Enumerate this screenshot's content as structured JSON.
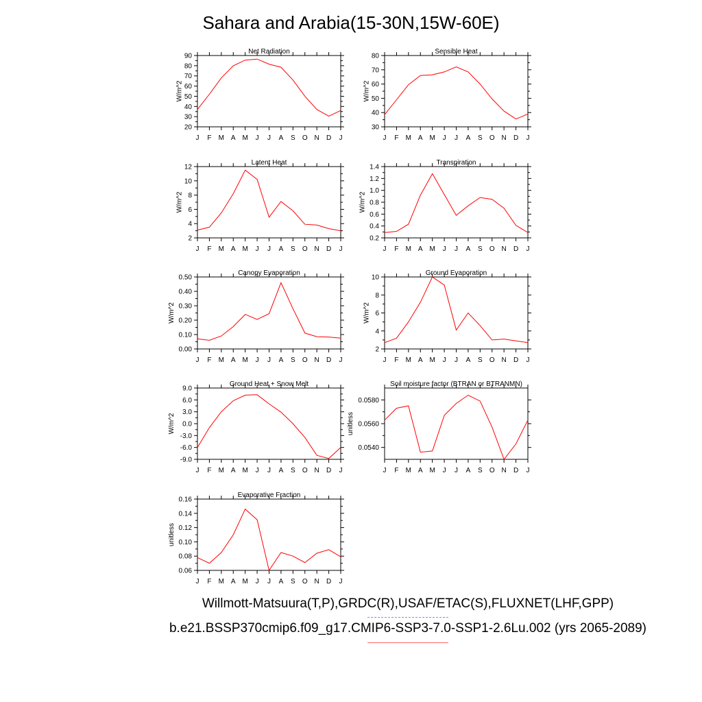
{
  "title": "Sahara and Arabia(15-30N,15W-60E)",
  "footer": {
    "line1": "Willmott-Matsuura(T,P),GRDC(R),USAF/ETAC(S),FLUXNET(LHF,GPP)",
    "line2": "b.e21.BSSP370cmip6.f09_g17.CMIP6-SSP3-7.0-SSP1-2.6Lu.002 (yrs 2065-2089)"
  },
  "colors": {
    "series": "#ff0000",
    "axis": "#000000"
  },
  "chart_data": [
    {
      "type": "line",
      "title": "Net Radiation",
      "ylabel": "W/m^2",
      "x": [
        "J",
        "F",
        "M",
        "A",
        "M",
        "J",
        "J",
        "A",
        "S",
        "O",
        "N",
        "D",
        "J"
      ],
      "ylim": [
        20,
        90
      ],
      "yticks": [
        "20",
        "30",
        "40",
        "50",
        "60",
        "70",
        "80",
        "90"
      ],
      "series": [
        {
          "values": [
            37,
            52,
            68,
            80,
            85.5,
            86.5,
            81.5,
            78.5,
            66,
            50,
            37,
            30.5,
            36
          ]
        }
      ]
    },
    {
      "type": "line",
      "title": "Sensible Heat",
      "ylabel": "W/m^2",
      "x": [
        "J",
        "F",
        "M",
        "A",
        "M",
        "J",
        "J",
        "A",
        "S",
        "O",
        "N",
        "D",
        "J"
      ],
      "ylim": [
        30,
        80
      ],
      "yticks": [
        "30",
        "40",
        "50",
        "60",
        "70",
        "80"
      ],
      "series": [
        {
          "values": [
            38.5,
            49,
            59.5,
            66,
            66.5,
            68.5,
            72,
            68.5,
            60,
            49.5,
            41,
            35.5,
            39
          ]
        }
      ]
    },
    {
      "type": "line",
      "title": "Latent Heat",
      "ylabel": "W/m^2",
      "x": [
        "J",
        "F",
        "M",
        "A",
        "M",
        "J",
        "J",
        "A",
        "S",
        "O",
        "N",
        "D",
        "J"
      ],
      "ylim": [
        2,
        12
      ],
      "yticks": [
        "2",
        "4",
        "6",
        "8",
        "10",
        "12"
      ],
      "series": [
        {
          "values": [
            3.1,
            3.5,
            5.5,
            8.2,
            11.5,
            10.2,
            4.9,
            7.1,
            5.8,
            3.9,
            3.8,
            3.3,
            3.0
          ]
        }
      ]
    },
    {
      "type": "line",
      "title": "Transpiration",
      "ylabel": "W/m^2",
      "x": [
        "J",
        "F",
        "M",
        "A",
        "M",
        "J",
        "J",
        "A",
        "S",
        "O",
        "N",
        "D",
        "J"
      ],
      "ylim": [
        0.2,
        1.4
      ],
      "yticks": [
        "0.2",
        "0.4",
        "0.6",
        "0.8",
        "1.0",
        "1.2",
        "1.4"
      ],
      "series": [
        {
          "values": [
            0.29,
            0.31,
            0.43,
            0.92,
            1.28,
            0.93,
            0.58,
            0.74,
            0.88,
            0.85,
            0.7,
            0.41,
            0.29
          ]
        }
      ]
    },
    {
      "type": "line",
      "title": "Canopy Evaporation",
      "ylabel": "W/m^2",
      "x": [
        "J",
        "F",
        "M",
        "A",
        "M",
        "J",
        "J",
        "A",
        "S",
        "O",
        "N",
        "D",
        "J"
      ],
      "ylim": [
        0.0,
        0.5
      ],
      "yticks": [
        "0.00",
        "0.10",
        "0.20",
        "0.30",
        "0.40",
        "0.50"
      ],
      "series": [
        {
          "values": [
            0.07,
            0.06,
            0.09,
            0.155,
            0.24,
            0.205,
            0.245,
            0.46,
            0.28,
            0.11,
            0.085,
            0.083,
            0.075
          ]
        }
      ]
    },
    {
      "type": "line",
      "title": "Ground Evaporation",
      "ylabel": "W/m^2",
      "x": [
        "J",
        "F",
        "M",
        "A",
        "M",
        "J",
        "J",
        "A",
        "S",
        "O",
        "N",
        "D",
        "J"
      ],
      "ylim": [
        2,
        10
      ],
      "yticks": [
        "2",
        "4",
        "6",
        "8",
        "10"
      ],
      "series": [
        {
          "values": [
            2.7,
            3.2,
            5.0,
            7.2,
            10.0,
            9.1,
            4.1,
            6.0,
            4.6,
            3.0,
            3.1,
            2.9,
            2.7
          ]
        }
      ]
    },
    {
      "type": "line",
      "title": "Ground Heat + Snow Melt",
      "ylabel": "W/m^2",
      "x": [
        "J",
        "F",
        "M",
        "A",
        "M",
        "J",
        "J",
        "A",
        "S",
        "O",
        "N",
        "D",
        "J"
      ],
      "ylim": [
        -9,
        9
      ],
      "yticks": [
        "-9.0",
        "-6.0",
        "-3.0",
        "0.0",
        "3.0",
        "6.0",
        "9.0"
      ],
      "series": [
        {
          "values": [
            -6.0,
            -1.0,
            3.0,
            5.8,
            7.2,
            7.3,
            5.0,
            2.9,
            0.0,
            -3.5,
            -8.0,
            -8.8,
            -6.0
          ]
        }
      ]
    },
    {
      "type": "line",
      "title": "Soil moisture factor (BTRAN or BTRANMN)",
      "ylabel": "unitless",
      "x": [
        "J",
        "F",
        "M",
        "A",
        "M",
        "J",
        "J",
        "A",
        "S",
        "O",
        "N",
        "D",
        "J"
      ],
      "ylim": [
        0.053,
        0.059
      ],
      "yticks": [
        "0.0540",
        "0.0560",
        "0.0580"
      ],
      "ytick_values": [
        0.054,
        0.056,
        0.058
      ],
      "series": [
        {
          "values": [
            0.0563,
            0.0573,
            0.0575,
            0.0536,
            0.0537,
            0.0567,
            0.0577,
            0.0584,
            0.0579,
            0.0557,
            0.053,
            0.0543,
            0.0563
          ]
        }
      ]
    },
    {
      "type": "line",
      "title": "Evaporative Fraction",
      "ylabel": "unitless",
      "x": [
        "J",
        "F",
        "M",
        "A",
        "M",
        "J",
        "J",
        "A",
        "S",
        "O",
        "N",
        "D",
        "J"
      ],
      "ylim": [
        0.06,
        0.16
      ],
      "yticks": [
        "0.06",
        "0.08",
        "0.10",
        "0.12",
        "0.14",
        "0.16"
      ],
      "series": [
        {
          "values": [
            0.078,
            0.07,
            0.085,
            0.11,
            0.146,
            0.131,
            0.06,
            0.085,
            0.08,
            0.071,
            0.084,
            0.089,
            0.079
          ]
        }
      ]
    }
  ]
}
